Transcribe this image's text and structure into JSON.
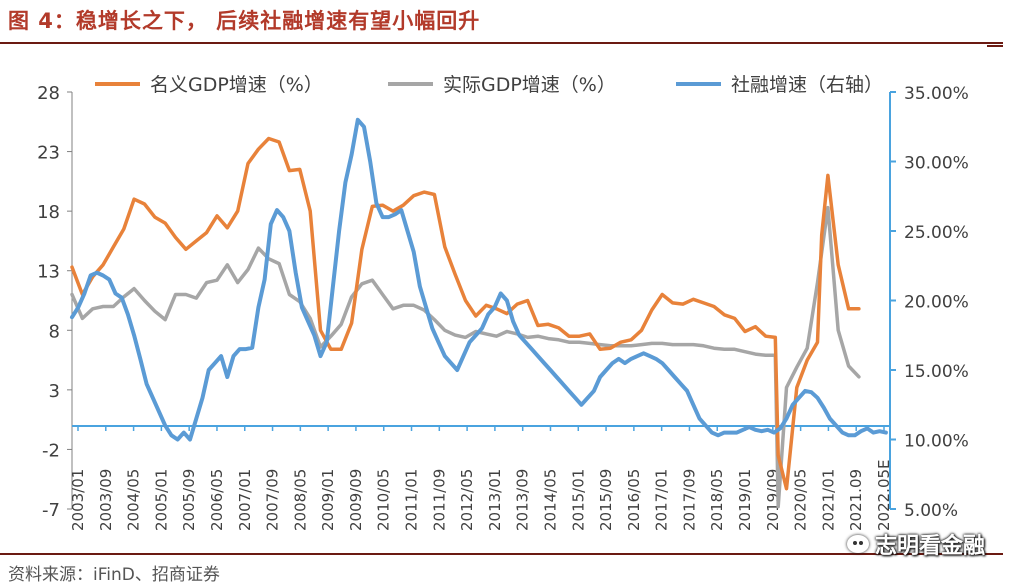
{
  "header": {
    "title": "图 4：稳增长之下， 后续社融增速有望小幅回升"
  },
  "footer": {
    "source": "资料来源：iFinD、招商证券",
    "watermark": "志明看金融",
    "watermark_icon": "wechat-icon"
  },
  "colors": {
    "title": "#b23a2a",
    "rule": "#6b1a12",
    "nominal": "#e8823a",
    "real": "#a6a6a6",
    "tsf": "#5b9bd5",
    "axis_left": "#808080",
    "axis_right": "#4aa3df"
  },
  "chart_data": {
    "type": "line",
    "title": "",
    "legend_position": "top",
    "grid": false,
    "x_labels": [
      "2003/01",
      "2003/09",
      "2004/05",
      "2005/01",
      "2005/09",
      "2006/05",
      "2007/01",
      "2007/09",
      "2008/05",
      "2009/01",
      "2009/09",
      "2010/05",
      "2011/01",
      "2011/09",
      "2012/05",
      "2013/01",
      "2013/09",
      "2014/05",
      "2015/01",
      "2015/09",
      "2016/05",
      "2017/01",
      "2017/09",
      "2018/05",
      "2019/01",
      "2019/09",
      "2020/05",
      "2021/01",
      "2021.09",
      "2022.05E"
    ],
    "y_left": {
      "ticks": [
        28,
        23,
        18,
        13,
        8,
        3,
        -2,
        -7
      ],
      "range": [
        -7,
        28
      ]
    },
    "y_right": {
      "ticks": [
        "35.00%",
        "30.00%",
        "25.00%",
        "20.00%",
        "15.00%",
        "10.00%",
        "5.00%"
      ],
      "range": [
        5,
        35
      ]
    },
    "series": [
      {
        "name": "名义GDP增速（%）",
        "axis": "left",
        "key": "nominal",
        "points": [
          [
            2003.0,
            13.3
          ],
          [
            2003.25,
            11.0
          ],
          [
            2003.5,
            12.5
          ],
          [
            2003.75,
            13.5
          ],
          [
            2004.0,
            15.0
          ],
          [
            2004.25,
            16.5
          ],
          [
            2004.5,
            19.0
          ],
          [
            2004.75,
            18.6
          ],
          [
            2005.0,
            17.5
          ],
          [
            2005.25,
            17.0
          ],
          [
            2005.5,
            15.8
          ],
          [
            2005.75,
            14.8
          ],
          [
            2006.0,
            15.5
          ],
          [
            2006.25,
            16.2
          ],
          [
            2006.5,
            17.6
          ],
          [
            2006.75,
            16.6
          ],
          [
            2007.0,
            18.0
          ],
          [
            2007.25,
            22.0
          ],
          [
            2007.5,
            23.2
          ],
          [
            2007.75,
            24.1
          ],
          [
            2008.0,
            23.8
          ],
          [
            2008.25,
            21.4
          ],
          [
            2008.5,
            21.5
          ],
          [
            2008.75,
            18.0
          ],
          [
            2009.0,
            8.0
          ],
          [
            2009.25,
            6.4
          ],
          [
            2009.5,
            6.4
          ],
          [
            2009.75,
            8.6
          ],
          [
            2010.0,
            14.8
          ],
          [
            2010.25,
            18.4
          ],
          [
            2010.5,
            18.5
          ],
          [
            2010.75,
            18.0
          ],
          [
            2011.0,
            18.5
          ],
          [
            2011.25,
            19.3
          ],
          [
            2011.5,
            19.6
          ],
          [
            2011.75,
            19.4
          ],
          [
            2012.0,
            15.0
          ],
          [
            2012.25,
            12.7
          ],
          [
            2012.5,
            10.5
          ],
          [
            2012.75,
            9.2
          ],
          [
            2013.0,
            10.1
          ],
          [
            2013.25,
            9.8
          ],
          [
            2013.5,
            9.4
          ],
          [
            2013.75,
            10.2
          ],
          [
            2014.0,
            10.5
          ],
          [
            2014.25,
            8.4
          ],
          [
            2014.5,
            8.5
          ],
          [
            2014.75,
            8.2
          ],
          [
            2015.0,
            7.5
          ],
          [
            2015.25,
            7.5
          ],
          [
            2015.5,
            7.7
          ],
          [
            2015.75,
            6.4
          ],
          [
            2016.0,
            6.5
          ],
          [
            2016.25,
            7.0
          ],
          [
            2016.5,
            7.2
          ],
          [
            2016.75,
            8.0
          ],
          [
            2017.0,
            9.7
          ],
          [
            2017.25,
            11.0
          ],
          [
            2017.5,
            10.3
          ],
          [
            2017.75,
            10.2
          ],
          [
            2018.0,
            10.6
          ],
          [
            2018.25,
            10.3
          ],
          [
            2018.5,
            10.0
          ],
          [
            2018.75,
            9.3
          ],
          [
            2019.0,
            9.0
          ],
          [
            2019.25,
            7.9
          ],
          [
            2019.5,
            8.3
          ],
          [
            2019.75,
            7.5
          ],
          [
            2019.98,
            7.4
          ],
          [
            2020.05,
            -2.5
          ],
          [
            2020.25,
            -5.3
          ],
          [
            2020.5,
            3.2
          ],
          [
            2020.75,
            5.5
          ],
          [
            2021.0,
            7.0
          ],
          [
            2021.1,
            16.0
          ],
          [
            2021.25,
            21.0
          ],
          [
            2021.5,
            13.5
          ],
          [
            2021.75,
            9.8
          ],
          [
            2022.0,
            9.8
          ]
        ]
      },
      {
        "name": "实际GDP增速（%）",
        "axis": "left",
        "key": "real",
        "points": [
          [
            2003.0,
            11.0
          ],
          [
            2003.25,
            9.0
          ],
          [
            2003.5,
            9.8
          ],
          [
            2003.75,
            10.0
          ],
          [
            2004.0,
            10.0
          ],
          [
            2004.25,
            10.8
          ],
          [
            2004.5,
            11.5
          ],
          [
            2004.75,
            10.5
          ],
          [
            2005.0,
            9.6
          ],
          [
            2005.25,
            8.9
          ],
          [
            2005.5,
            11.0
          ],
          [
            2005.75,
            11.0
          ],
          [
            2006.0,
            10.7
          ],
          [
            2006.25,
            12.0
          ],
          [
            2006.5,
            12.2
          ],
          [
            2006.75,
            13.5
          ],
          [
            2007.0,
            12.0
          ],
          [
            2007.25,
            13.1
          ],
          [
            2007.5,
            14.9
          ],
          [
            2007.75,
            14.0
          ],
          [
            2008.0,
            13.6
          ],
          [
            2008.25,
            11.0
          ],
          [
            2008.5,
            10.4
          ],
          [
            2008.75,
            9.0
          ],
          [
            2009.0,
            6.6
          ],
          [
            2009.25,
            7.5
          ],
          [
            2009.5,
            8.5
          ],
          [
            2009.75,
            10.8
          ],
          [
            2010.0,
            11.9
          ],
          [
            2010.25,
            12.2
          ],
          [
            2010.5,
            11.0
          ],
          [
            2010.75,
            9.8
          ],
          [
            2011.0,
            10.1
          ],
          [
            2011.25,
            10.1
          ],
          [
            2011.5,
            9.7
          ],
          [
            2011.75,
            8.9
          ],
          [
            2012.0,
            8.0
          ],
          [
            2012.25,
            7.6
          ],
          [
            2012.5,
            7.4
          ],
          [
            2012.75,
            7.9
          ],
          [
            2013.0,
            7.7
          ],
          [
            2013.25,
            7.5
          ],
          [
            2013.5,
            7.9
          ],
          [
            2013.75,
            7.7
          ],
          [
            2014.0,
            7.4
          ],
          [
            2014.25,
            7.5
          ],
          [
            2014.5,
            7.3
          ],
          [
            2014.75,
            7.2
          ],
          [
            2015.0,
            7.0
          ],
          [
            2015.25,
            7.0
          ],
          [
            2015.5,
            6.9
          ],
          [
            2015.75,
            6.8
          ],
          [
            2016.0,
            6.7
          ],
          [
            2016.25,
            6.7
          ],
          [
            2016.5,
            6.7
          ],
          [
            2016.75,
            6.8
          ],
          [
            2017.0,
            6.9
          ],
          [
            2017.25,
            6.9
          ],
          [
            2017.5,
            6.8
          ],
          [
            2017.75,
            6.8
          ],
          [
            2018.0,
            6.8
          ],
          [
            2018.25,
            6.7
          ],
          [
            2018.5,
            6.5
          ],
          [
            2018.75,
            6.4
          ],
          [
            2019.0,
            6.4
          ],
          [
            2019.25,
            6.2
          ],
          [
            2019.5,
            6.0
          ],
          [
            2019.75,
            5.9
          ],
          [
            2019.98,
            5.9
          ],
          [
            2020.05,
            -6.8
          ],
          [
            2020.25,
            3.2
          ],
          [
            2020.5,
            4.9
          ],
          [
            2020.75,
            6.5
          ],
          [
            2021.0,
            12.0
          ],
          [
            2021.25,
            18.3
          ],
          [
            2021.5,
            8.0
          ],
          [
            2021.75,
            5.0
          ],
          [
            2022.0,
            4.1
          ]
        ]
      },
      {
        "name": "社融增速（右轴）",
        "axis": "right",
        "key": "tsf",
        "points": [
          [
            2003.0,
            18.8
          ],
          [
            2003.15,
            19.5
          ],
          [
            2003.3,
            20.5
          ],
          [
            2003.45,
            21.8
          ],
          [
            2003.6,
            22.0
          ],
          [
            2003.75,
            21.8
          ],
          [
            2003.9,
            21.5
          ],
          [
            2004.05,
            20.5
          ],
          [
            2004.2,
            20.2
          ],
          [
            2004.35,
            19.0
          ],
          [
            2004.5,
            17.5
          ],
          [
            2004.65,
            15.8
          ],
          [
            2004.8,
            14.0
          ],
          [
            2004.95,
            13.0
          ],
          [
            2005.1,
            12.0
          ],
          [
            2005.25,
            11.0
          ],
          [
            2005.4,
            10.3
          ],
          [
            2005.55,
            10.0
          ],
          [
            2005.7,
            10.5
          ],
          [
            2005.85,
            10.0
          ],
          [
            2006.0,
            11.5
          ],
          [
            2006.15,
            13.0
          ],
          [
            2006.3,
            15.0
          ],
          [
            2006.45,
            15.5
          ],
          [
            2006.6,
            16.0
          ],
          [
            2006.75,
            14.5
          ],
          [
            2006.9,
            16.0
          ],
          [
            2007.05,
            16.5
          ],
          [
            2007.2,
            16.5
          ],
          [
            2007.35,
            16.6
          ],
          [
            2007.5,
            19.5
          ],
          [
            2007.65,
            21.5
          ],
          [
            2007.8,
            25.5
          ],
          [
            2007.95,
            26.5
          ],
          [
            2008.1,
            26.0
          ],
          [
            2008.25,
            25.0
          ],
          [
            2008.4,
            22.0
          ],
          [
            2008.55,
            19.5
          ],
          [
            2008.7,
            18.5
          ],
          [
            2008.85,
            17.5
          ],
          [
            2009.0,
            16.0
          ],
          [
            2009.15,
            17.0
          ],
          [
            2009.3,
            21.0
          ],
          [
            2009.45,
            25.0
          ],
          [
            2009.6,
            28.5
          ],
          [
            2009.75,
            30.5
          ],
          [
            2009.9,
            33.0
          ],
          [
            2010.05,
            32.5
          ],
          [
            2010.2,
            30.0
          ],
          [
            2010.35,
            27.0
          ],
          [
            2010.5,
            26.0
          ],
          [
            2010.65,
            26.0
          ],
          [
            2010.8,
            26.2
          ],
          [
            2010.95,
            26.5
          ],
          [
            2011.1,
            25.0
          ],
          [
            2011.25,
            23.5
          ],
          [
            2011.4,
            21.0
          ],
          [
            2011.55,
            19.5
          ],
          [
            2011.7,
            18.0
          ],
          [
            2011.85,
            17.0
          ],
          [
            2012.0,
            16.0
          ],
          [
            2012.15,
            15.5
          ],
          [
            2012.3,
            15.0
          ],
          [
            2012.45,
            16.0
          ],
          [
            2012.6,
            17.0
          ],
          [
            2012.75,
            17.5
          ],
          [
            2012.9,
            18.0
          ],
          [
            2013.05,
            19.0
          ],
          [
            2013.2,
            19.5
          ],
          [
            2013.35,
            20.5
          ],
          [
            2013.5,
            20.0
          ],
          [
            2013.65,
            18.5
          ],
          [
            2013.8,
            17.5
          ],
          [
            2013.95,
            17.0
          ],
          [
            2014.1,
            16.5
          ],
          [
            2014.25,
            16.0
          ],
          [
            2014.4,
            15.5
          ],
          [
            2014.55,
            15.0
          ],
          [
            2014.7,
            14.5
          ],
          [
            2014.85,
            14.0
          ],
          [
            2015.0,
            13.5
          ],
          [
            2015.15,
            13.0
          ],
          [
            2015.3,
            12.5
          ],
          [
            2015.45,
            13.0
          ],
          [
            2015.6,
            13.5
          ],
          [
            2015.75,
            14.5
          ],
          [
            2015.9,
            15.0
          ],
          [
            2016.05,
            15.5
          ],
          [
            2016.2,
            15.8
          ],
          [
            2016.35,
            15.5
          ],
          [
            2016.5,
            15.8
          ],
          [
            2016.65,
            16.0
          ],
          [
            2016.8,
            16.2
          ],
          [
            2016.95,
            16.0
          ],
          [
            2017.1,
            15.8
          ],
          [
            2017.25,
            15.5
          ],
          [
            2017.4,
            15.0
          ],
          [
            2017.55,
            14.5
          ],
          [
            2017.7,
            14.0
          ],
          [
            2017.85,
            13.5
          ],
          [
            2018.0,
            12.5
          ],
          [
            2018.15,
            11.5
          ],
          [
            2018.3,
            11.0
          ],
          [
            2018.45,
            10.5
          ],
          [
            2018.6,
            10.3
          ],
          [
            2018.75,
            10.5
          ],
          [
            2018.9,
            10.5
          ],
          [
            2019.05,
            10.5
          ],
          [
            2019.2,
            10.7
          ],
          [
            2019.35,
            10.9
          ],
          [
            2019.5,
            10.7
          ],
          [
            2019.65,
            10.6
          ],
          [
            2019.8,
            10.7
          ],
          [
            2019.95,
            10.5
          ],
          [
            2020.1,
            10.8
          ],
          [
            2020.25,
            11.5
          ],
          [
            2020.4,
            12.5
          ],
          [
            2020.55,
            13.0
          ],
          [
            2020.7,
            13.5
          ],
          [
            2020.85,
            13.4
          ],
          [
            2021.0,
            13.0
          ],
          [
            2021.15,
            12.3
          ],
          [
            2021.3,
            11.5
          ],
          [
            2021.45,
            11.0
          ],
          [
            2021.6,
            10.5
          ],
          [
            2021.75,
            10.3
          ],
          [
            2021.9,
            10.3
          ],
          [
            2022.05,
            10.6
          ],
          [
            2022.2,
            10.8
          ],
          [
            2022.35,
            10.5
          ],
          [
            2022.5,
            10.6
          ],
          [
            2022.65,
            10.5
          ]
        ]
      }
    ]
  }
}
